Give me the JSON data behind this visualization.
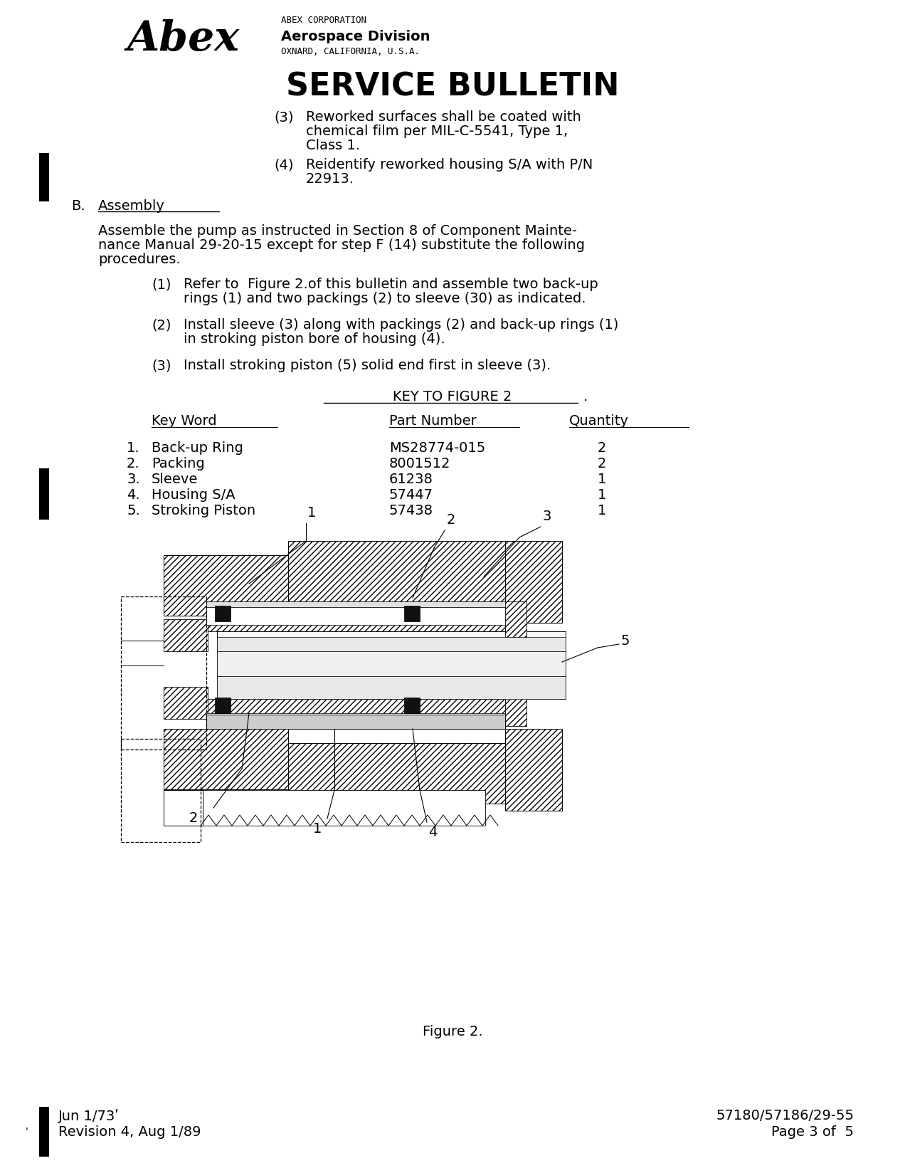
{
  "bg_color": "#ffffff",
  "text_color": "#000000",
  "header": {
    "company_small": "ABEX CORPORATION",
    "company_div": "Aerospace Division",
    "company_loc": "OXNARD, CALIFORNIA, U.S.A.",
    "title": "SERVICE BULLETIN"
  },
  "footer": {
    "left_top": "Jun 1/73ʹ",
    "left_bottom": "Revision 4, Aug 1/89",
    "right_top": "57180/57186/29-55",
    "right_bottom": "Page 3 of  5"
  },
  "figure_label": "Figure 2."
}
